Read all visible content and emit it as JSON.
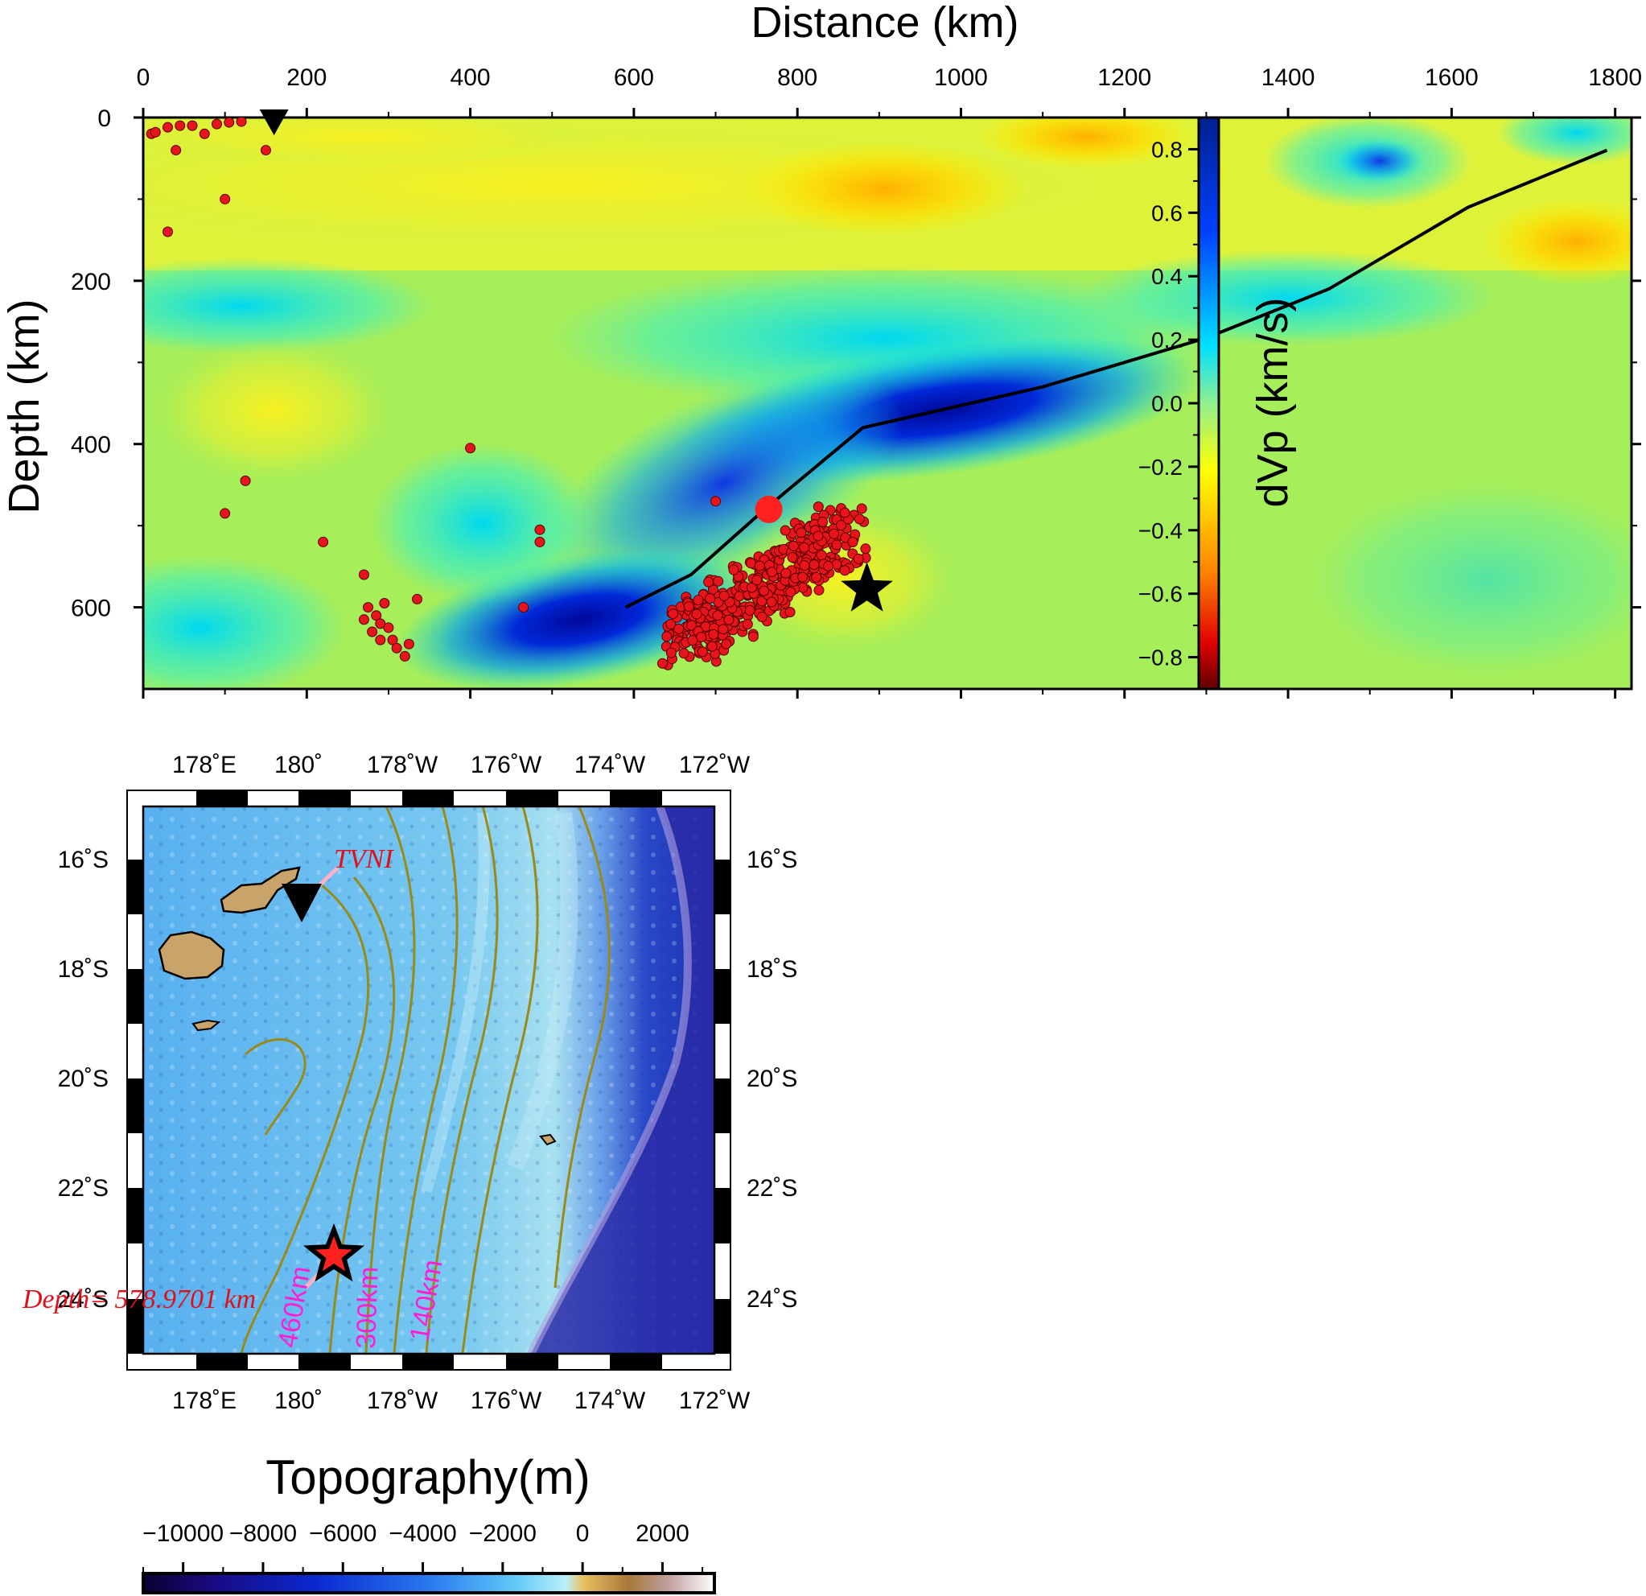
{
  "cross_section": {
    "x_title": "Distance (km)",
    "y_title": "Depth (km)",
    "x_ticks": [
      "0",
      "200",
      "400",
      "600",
      "800",
      "1000",
      "1200",
      "1400",
      "1600",
      "1800"
    ],
    "y_ticks": [
      "0",
      "200",
      "400",
      "600"
    ],
    "xlim": [
      0,
      1820
    ],
    "ylim": [
      0,
      700
    ],
    "colorbar": {
      "title": "dVp (km/s)",
      "ticks": [
        "0.8",
        "0.6",
        "0.4",
        "0.2",
        "0.0",
        "−0.2",
        "−0.4",
        "−0.6",
        "−0.8"
      ],
      "range": [
        -0.9,
        0.9
      ]
    },
    "colors": {
      "fast": "#0018c8",
      "slow": "#ffd000",
      "neutral": "#a6ee5a",
      "event": "#e8141c",
      "slab_line": "#000000"
    },
    "slab_line": [
      [
        590,
        600
      ],
      [
        670,
        560
      ],
      [
        760,
        480
      ],
      [
        880,
        380
      ],
      [
        1100,
        330
      ],
      [
        1300,
        270
      ],
      [
        1450,
        210
      ],
      [
        1620,
        110
      ],
      [
        1790,
        40
      ]
    ],
    "station_marker": {
      "name": "TVNI",
      "distance": 160,
      "depth": 0
    },
    "mainshock_star": {
      "distance": 885,
      "depth": 578
    },
    "large_event": {
      "distance": 765,
      "depth": 480
    }
  },
  "map": {
    "lon_ticks": [
      "178˚E",
      "180˚",
      "178˚W",
      "176˚W",
      "174˚W",
      "172˚W"
    ],
    "lat_ticks": [
      "16˚S",
      "18˚S",
      "20˚S",
      "22˚S",
      "24˚S"
    ],
    "station_label": "TVNI",
    "depth_label": "Depth= 578.9701 km",
    "contour_labels": [
      "460km",
      "300km",
      "140km"
    ],
    "colors": {
      "contour": "#9a8a1a",
      "station_line": "#ffb0c8",
      "star_fill": "#ff2020",
      "land": "#c8a46a"
    }
  },
  "topo_colorbar": {
    "title": "Topography(m)",
    "ticks": [
      "−10000",
      "−8000",
      "−6000",
      "−4000",
      "−2000",
      "0",
      "2000"
    ],
    "range": [
      -11000,
      3300
    ]
  }
}
